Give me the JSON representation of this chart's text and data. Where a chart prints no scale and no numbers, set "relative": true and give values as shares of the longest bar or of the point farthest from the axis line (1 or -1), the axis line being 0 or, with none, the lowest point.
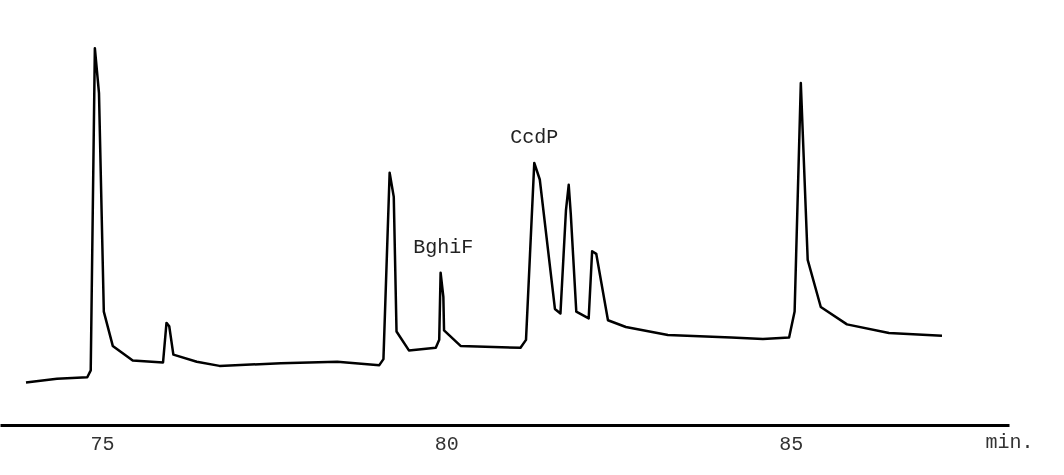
{
  "chart_data": {
    "type": "line",
    "relative": true,
    "xlabel": "min.",
    "xlim": [
      73.52,
      88.17
    ],
    "xticks": [
      75,
      80,
      85
    ],
    "grid": false,
    "marker": "none",
    "line_style": "solid",
    "series": [
      {
        "color": "#000000",
        "x": [
          73.89,
          74.34,
          74.78,
          74.83,
          74.89,
          74.95,
          75.02,
          75.15,
          75.44,
          75.88,
          75.93,
          75.97,
          76.03,
          76.37,
          76.7,
          77.59,
          78.41,
          79.02,
          79.08,
          79.17,
          79.23,
          79.27,
          79.45,
          79.84,
          79.89,
          79.91,
          79.95,
          79.96,
          80.2,
          81.07,
          81.15,
          81.27,
          81.35,
          81.57,
          81.65,
          81.73,
          81.77,
          81.8,
          81.88,
          82.06,
          82.11,
          82.17,
          82.34,
          82.6,
          83.21,
          84.13,
          84.59,
          84.97,
          85.05,
          85.14,
          85.24,
          85.43,
          85.81,
          86.42,
          87.19
        ],
        "values": [
          0.114,
          0.124,
          0.128,
          0.146,
          1.0,
          0.881,
          0.302,
          0.211,
          0.172,
          0.167,
          0.272,
          0.263,
          0.188,
          0.169,
          0.158,
          0.165,
          0.169,
          0.16,
          0.176,
          0.67,
          0.606,
          0.249,
          0.199,
          0.206,
          0.227,
          0.405,
          0.341,
          0.252,
          0.211,
          0.206,
          0.227,
          0.696,
          0.652,
          0.309,
          0.297,
          0.57,
          0.638,
          0.561,
          0.302,
          0.284,
          0.462,
          0.455,
          0.279,
          0.261,
          0.24,
          0.233,
          0.229,
          0.233,
          0.302,
          0.908,
          0.439,
          0.314,
          0.268,
          0.245,
          0.238
        ]
      }
    ],
    "annotations": [
      {
        "text": "BghiF",
        "x": 79.95,
        "y": 0.405
      },
      {
        "text": "CcdP",
        "x": 81.27,
        "y": 0.696
      }
    ]
  }
}
